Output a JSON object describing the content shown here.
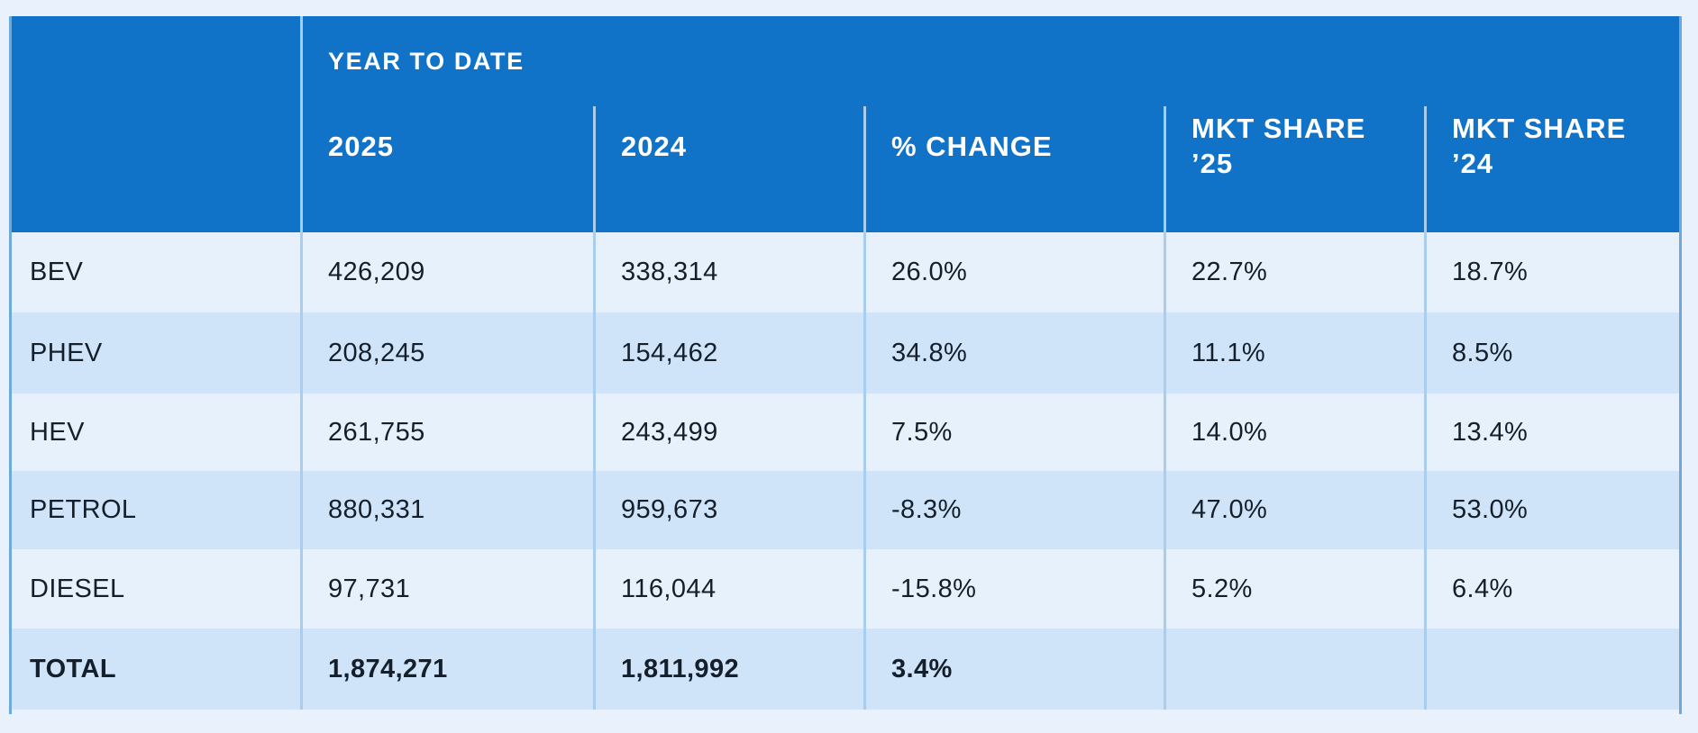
{
  "colors": {
    "page_background": "#e9f1fc",
    "header_background": "#1173c8",
    "header_text": "#ffffff",
    "row_light": "#e7f1fc",
    "row_medium": "#cfe4f8",
    "divider": "#a9cdee",
    "body_text": "#141f2b"
  },
  "header": {
    "group_label": "YEAR TO DATE",
    "columns": [
      {
        "label": "2025"
      },
      {
        "label": "2024"
      },
      {
        "label": "% CHANGE"
      },
      {
        "label": "MKT SHARE",
        "label_line2": "’25"
      },
      {
        "label": "MKT SHARE",
        "label_line2": "’24"
      }
    ]
  },
  "table": {
    "rows": [
      {
        "label": "BEV",
        "cells": [
          "426,209",
          "338,314",
          "26.0%",
          "22.7%",
          "18.7%"
        ]
      },
      {
        "label": "PHEV",
        "cells": [
          "208,245",
          "154,462",
          "34.8%",
          "11.1%",
          "8.5%"
        ]
      },
      {
        "label": "HEV",
        "cells": [
          "261,755",
          "243,499",
          "7.5%",
          "14.0%",
          "13.4%"
        ]
      },
      {
        "label": "PETROL",
        "cells": [
          "880,331",
          "959,673",
          "-8.3%",
          "47.0%",
          "53.0%"
        ]
      },
      {
        "label": "DIESEL",
        "cells": [
          "97,731",
          "116,044",
          "-15.8%",
          "5.2%",
          "6.4%"
        ]
      },
      {
        "label": "TOTAL",
        "cells": [
          "1,874,271",
          "1,811,992",
          "3.4%",
          "",
          ""
        ]
      }
    ]
  },
  "chart_data": {
    "type": "table",
    "group_header": "YEAR TO DATE",
    "columns": [
      "",
      "2025",
      "2024",
      "% CHANGE",
      "MKT SHARE ’25",
      "MKT SHARE ’24"
    ],
    "rows": [
      [
        "BEV",
        426209,
        338314,
        "26.0%",
        "22.7%",
        "18.7%"
      ],
      [
        "PHEV",
        208245,
        154462,
        "34.8%",
        "11.1%",
        "8.5%"
      ],
      [
        "HEV",
        261755,
        243499,
        "7.5%",
        "14.0%",
        "13.4%"
      ],
      [
        "PETROL",
        880331,
        959673,
        "-8.3%",
        "47.0%",
        "53.0%"
      ],
      [
        "DIESEL",
        97731,
        116044,
        "-15.8%",
        "5.2%",
        "6.4%"
      ],
      [
        "TOTAL",
        1874271,
        1811992,
        "3.4%",
        null,
        null
      ]
    ]
  }
}
